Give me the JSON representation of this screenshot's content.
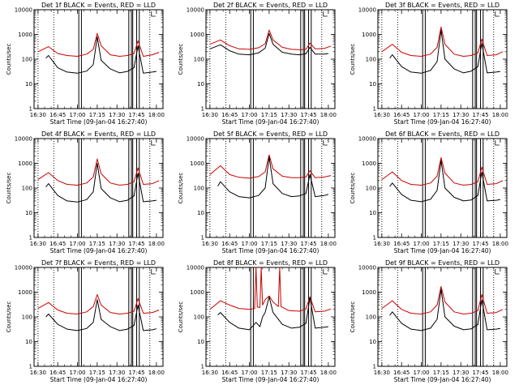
{
  "figure": {
    "x_axis_label": "Start Time (09-Jan-04 16:27:40)",
    "y_axis_label": "Counts/sec"
  },
  "chart_data": [
    {
      "type": "line",
      "title": "Det 1f BLACK = Events, RED = LLD",
      "xlabel": "Start Time (09-Jan-04 16:27:40)",
      "ylabel": "Counts/sec",
      "y_scale": "log",
      "ylim": [
        1,
        10000
      ],
      "x_ticks": [
        "16:30",
        "16:45",
        "17:00",
        "17:15",
        "17:30",
        "17:45",
        "18:00"
      ],
      "y_ticks": [
        "1",
        "10",
        "100",
        "1000",
        "10000"
      ],
      "series": [
        {
          "name": "RED",
          "color": "#cc0000",
          "x": [
            "16:30",
            "16:38",
            "16:45",
            "16:52",
            "17:00",
            "17:07",
            "17:12",
            "17:15",
            "17:18",
            "17:25",
            "17:32",
            "17:38",
            "17:43",
            "17:46",
            "17:50",
            "17:57",
            "18:02"
          ],
          "values": [
            200,
            320,
            170,
            140,
            130,
            160,
            250,
            1100,
            350,
            150,
            130,
            140,
            170,
            550,
            130,
            150,
            190
          ]
        },
        {
          "name": "BLACK",
          "color": "#000000",
          "x": [
            "16:36",
            "16:38",
            "16:45",
            "16:52",
            "17:00",
            "17:07",
            "17:12",
            "17:15",
            "17:18",
            "17:25",
            "17:32",
            "17:38",
            "17:43",
            "17:46",
            "17:50",
            "17:57",
            "18:00"
          ],
          "values": [
            110,
            140,
            45,
            30,
            27,
            33,
            60,
            800,
            90,
            40,
            28,
            32,
            45,
            350,
            27,
            30,
            32
          ]
        }
      ]
    },
    {
      "type": "line",
      "title": "Det 2f BLACK = Events, RED = LLD",
      "xlabel": "Start Time (09-Jan-04 16:27:40)",
      "ylabel": "Counts/sec",
      "y_scale": "log",
      "ylim": [
        1,
        10000
      ],
      "x_ticks": [
        "16:30",
        "16:45",
        "17:00",
        "17:15",
        "17:30",
        "17:45",
        "18:00"
      ],
      "y_ticks": [
        "1",
        "10",
        "100",
        "1000",
        "10000"
      ],
      "series": [
        {
          "name": "RED",
          "color": "#cc0000",
          "x": [
            "16:30",
            "16:38",
            "16:45",
            "16:52",
            "17:00",
            "17:07",
            "17:12",
            "17:15",
            "17:18",
            "17:25",
            "17:32",
            "17:38",
            "17:43",
            "17:46",
            "17:50",
            "17:57",
            "18:02"
          ],
          "values": [
            400,
            600,
            350,
            260,
            250,
            290,
            420,
            1500,
            600,
            300,
            250,
            240,
            250,
            450,
            260,
            270,
            340
          ]
        },
        {
          "name": "BLACK",
          "color": "#000000",
          "x": [
            "16:30",
            "16:38",
            "16:45",
            "16:52",
            "17:00",
            "17:07",
            "17:12",
            "17:15",
            "17:18",
            "17:25",
            "17:32",
            "17:38",
            "17:43",
            "17:46",
            "17:50",
            "17:57",
            "18:00"
          ],
          "values": [
            260,
            380,
            220,
            160,
            150,
            180,
            280,
            1100,
            400,
            190,
            160,
            150,
            165,
            300,
            160,
            160,
            170
          ]
        }
      ]
    },
    {
      "type": "line",
      "title": "Det 3f BLACK = Events, RED = LLD",
      "xlabel": "Start Time (09-Jan-04 16:27:40)",
      "ylabel": "Counts/sec",
      "y_scale": "log",
      "ylim": [
        1,
        10000
      ],
      "x_ticks": [
        "16:30",
        "16:45",
        "17:00",
        "17:15",
        "17:30",
        "17:45",
        "18:00"
      ],
      "y_ticks": [
        "1",
        "10",
        "100",
        "1000",
        "10000"
      ],
      "series": [
        {
          "name": "RED",
          "color": "#cc0000",
          "x": [
            "16:30",
            "16:38",
            "16:45",
            "16:52",
            "17:00",
            "17:07",
            "17:12",
            "17:15",
            "17:18",
            "17:25",
            "17:32",
            "17:38",
            "17:43",
            "17:46",
            "17:50",
            "17:57",
            "18:02"
          ],
          "values": [
            200,
            400,
            190,
            140,
            130,
            160,
            300,
            2000,
            400,
            160,
            130,
            140,
            180,
            650,
            140,
            150,
            200
          ]
        },
        {
          "name": "BLACK",
          "color": "#000000",
          "x": [
            "16:36",
            "16:38",
            "16:45",
            "16:52",
            "17:00",
            "17:07",
            "17:12",
            "17:15",
            "17:18",
            "17:25",
            "17:32",
            "17:38",
            "17:43",
            "17:46",
            "17:50",
            "17:57",
            "18:00"
          ],
          "values": [
            110,
            150,
            50,
            30,
            27,
            35,
            80,
            1500,
            100,
            40,
            28,
            33,
            50,
            450,
            28,
            30,
            32
          ]
        }
      ]
    },
    {
      "type": "line",
      "title": "Det 4f BLACK = Events, RED = LLD",
      "xlabel": "Start Time (09-Jan-04 16:27:40)",
      "ylabel": "Counts/sec",
      "y_scale": "log",
      "ylim": [
        1,
        10000
      ],
      "x_ticks": [
        "16:30",
        "16:45",
        "17:00",
        "17:15",
        "17:30",
        "17:45",
        "18:00"
      ],
      "y_ticks": [
        "1",
        "10",
        "100",
        "1000",
        "10000"
      ],
      "series": [
        {
          "name": "RED",
          "color": "#cc0000",
          "x": [
            "16:30",
            "16:38",
            "16:45",
            "16:52",
            "17:00",
            "17:07",
            "17:12",
            "17:15",
            "17:18",
            "17:25",
            "17:32",
            "17:38",
            "17:43",
            "17:46",
            "17:50",
            "17:57",
            "18:02"
          ],
          "values": [
            220,
            420,
            200,
            140,
            130,
            160,
            280,
            1500,
            380,
            160,
            130,
            140,
            180,
            650,
            140,
            150,
            200
          ]
        },
        {
          "name": "BLACK",
          "color": "#000000",
          "x": [
            "16:36",
            "16:38",
            "16:45",
            "16:52",
            "17:00",
            "17:07",
            "17:12",
            "17:15",
            "17:18",
            "17:25",
            "17:32",
            "17:38",
            "17:43",
            "17:46",
            "17:50",
            "17:57",
            "18:00"
          ],
          "values": [
            110,
            150,
            50,
            30,
            27,
            34,
            70,
            1000,
            95,
            40,
            28,
            32,
            48,
            400,
            28,
            30,
            32
          ]
        }
      ]
    },
    {
      "type": "line",
      "title": "Det 5f BLACK = Events, RED = LLD",
      "xlabel": "Start Time (09-Jan-04 16:27:40)",
      "ylabel": "Counts/sec",
      "y_scale": "log",
      "ylim": [
        1,
        10000
      ],
      "x_ticks": [
        "16:30",
        "16:45",
        "17:00",
        "17:15",
        "17:30",
        "17:45",
        "18:00"
      ],
      "y_ticks": [
        "1",
        "10",
        "100",
        "1000",
        "10000"
      ],
      "series": [
        {
          "name": "RED",
          "color": "#cc0000",
          "x": [
            "16:30",
            "16:38",
            "16:45",
            "16:52",
            "17:00",
            "17:07",
            "17:12",
            "17:15",
            "17:18",
            "17:25",
            "17:32",
            "17:38",
            "17:43",
            "17:46",
            "17:50",
            "17:57",
            "18:02"
          ],
          "values": [
            350,
            800,
            350,
            270,
            250,
            290,
            450,
            2200,
            600,
            300,
            260,
            260,
            280,
            500,
            260,
            280,
            320
          ]
        },
        {
          "name": "BLACK",
          "color": "#000000",
          "x": [
            "16:36",
            "16:38",
            "16:45",
            "16:52",
            "17:00",
            "17:07",
            "17:12",
            "17:15",
            "17:18",
            "17:25",
            "17:32",
            "17:38",
            "17:43",
            "17:46",
            "17:50",
            "17:57",
            "18:00"
          ],
          "values": [
            120,
            180,
            70,
            45,
            40,
            50,
            100,
            1800,
            150,
            60,
            45,
            48,
            60,
            350,
            45,
            50,
            55
          ]
        }
      ]
    },
    {
      "type": "line",
      "title": "Det 6f BLACK = Events, RED = LLD",
      "xlabel": "Start Time (09-Jan-04 16:27:40)",
      "ylabel": "Counts/sec",
      "y_scale": "log",
      "ylim": [
        1,
        10000
      ],
      "x_ticks": [
        "16:30",
        "16:45",
        "17:00",
        "17:15",
        "17:30",
        "17:45",
        "18:00"
      ],
      "y_ticks": [
        "1",
        "10",
        "100",
        "1000",
        "10000"
      ],
      "series": [
        {
          "name": "RED",
          "color": "#cc0000",
          "x": [
            "16:30",
            "16:38",
            "16:45",
            "16:52",
            "17:00",
            "17:07",
            "17:12",
            "17:15",
            "17:18",
            "17:25",
            "17:32",
            "17:38",
            "17:43",
            "17:46",
            "17:50",
            "17:57",
            "18:02"
          ],
          "values": [
            220,
            450,
            200,
            140,
            130,
            160,
            300,
            1700,
            400,
            160,
            130,
            140,
            180,
            700,
            140,
            150,
            200
          ]
        },
        {
          "name": "BLACK",
          "color": "#000000",
          "x": [
            "16:36",
            "16:38",
            "16:45",
            "16:52",
            "17:00",
            "17:07",
            "17:12",
            "17:15",
            "17:18",
            "17:25",
            "17:32",
            "17:38",
            "17:43",
            "17:46",
            "17:50",
            "17:57",
            "18:00"
          ],
          "values": [
            115,
            160,
            55,
            32,
            28,
            35,
            80,
            1300,
            100,
            42,
            30,
            33,
            50,
            450,
            30,
            32,
            34
          ]
        }
      ]
    },
    {
      "type": "line",
      "title": "Det 7f BLACK = Events, RED = LLD",
      "xlabel": "Start Time (09-Jan-04 16:27:40)",
      "ylabel": "Counts/sec",
      "y_scale": "log",
      "ylim": [
        1,
        10000
      ],
      "x_ticks": [
        "16:30",
        "16:45",
        "17:00",
        "17:15",
        "17:30",
        "17:45",
        "18:00"
      ],
      "y_ticks": [
        "1",
        "10",
        "100",
        "1000",
        "10000"
      ],
      "series": [
        {
          "name": "RED",
          "color": "#cc0000",
          "x": [
            "16:30",
            "16:38",
            "16:45",
            "16:52",
            "17:00",
            "17:07",
            "17:12",
            "17:15",
            "17:18",
            "17:25",
            "17:32",
            "17:38",
            "17:43",
            "17:46",
            "17:50",
            "17:57",
            "18:02"
          ],
          "values": [
            220,
            380,
            190,
            140,
            130,
            160,
            260,
            800,
            300,
            150,
            130,
            140,
            170,
            550,
            140,
            150,
            190
          ]
        },
        {
          "name": "BLACK",
          "color": "#000000",
          "x": [
            "16:36",
            "16:38",
            "16:45",
            "16:52",
            "17:00",
            "17:07",
            "17:12",
            "17:15",
            "17:18",
            "17:25",
            "17:32",
            "17:38",
            "17:43",
            "17:46",
            "17:50",
            "17:57",
            "18:00"
          ],
          "values": [
            100,
            130,
            50,
            32,
            28,
            34,
            60,
            500,
            80,
            40,
            28,
            32,
            45,
            300,
            28,
            30,
            33
          ]
        }
      ]
    },
    {
      "type": "line",
      "title": "Det 8f BLACK = Events, RED = LLD",
      "xlabel": "Start Time (09-Jan-04 16:27:40)",
      "ylabel": "Counts/sec",
      "y_scale": "log",
      "ylim": [
        1,
        10000
      ],
      "x_ticks": [
        "16:30",
        "16:45",
        "17:00",
        "17:15",
        "17:30",
        "17:45",
        "18:00"
      ],
      "y_ticks": [
        "1",
        "10",
        "100",
        "1000",
        "10000"
      ],
      "series": [
        {
          "name": "RED",
          "color": "#cc0000",
          "x": [
            "16:30",
            "16:38",
            "16:45",
            "16:52",
            "17:00",
            "17:04",
            "17:05",
            "17:06",
            "17:08",
            "17:09",
            "17:10",
            "17:12",
            "17:15",
            "17:18",
            "17:22",
            "17:23",
            "17:24",
            "17:30",
            "17:38",
            "17:43",
            "17:46",
            "17:50",
            "17:57",
            "18:02"
          ],
          "values": [
            200,
            450,
            300,
            220,
            200,
            220,
            10000,
            250,
            240,
            10000,
            300,
            500,
            700,
            400,
            260,
            10000,
            260,
            180,
            170,
            210,
            650,
            160,
            170,
            210
          ]
        },
        {
          "name": "BLACK",
          "color": "#000000",
          "x": [
            "16:36",
            "16:38",
            "16:45",
            "16:52",
            "17:00",
            "17:05",
            "17:08",
            "17:10",
            "17:12",
            "17:15",
            "17:18",
            "17:25",
            "17:32",
            "17:38",
            "17:43",
            "17:46",
            "17:50",
            "17:57",
            "18:00"
          ],
          "values": [
            120,
            150,
            60,
            35,
            30,
            60,
            40,
            100,
            150,
            650,
            150,
            50,
            35,
            38,
            55,
            600,
            35,
            38,
            40
          ]
        }
      ]
    },
    {
      "type": "line",
      "title": "Det 9f BLACK = Events, RED = LLD",
      "xlabel": "Start Time (09-Jan-04 16:27:40)",
      "ylabel": "Counts/sec",
      "y_scale": "log",
      "ylim": [
        1,
        10000
      ],
      "x_ticks": [
        "16:30",
        "16:45",
        "17:00",
        "17:15",
        "17:30",
        "17:45",
        "18:00"
      ],
      "y_ticks": [
        "1",
        "10",
        "100",
        "1000",
        "10000"
      ],
      "series": [
        {
          "name": "RED",
          "color": "#cc0000",
          "x": [
            "16:30",
            "16:38",
            "16:45",
            "16:52",
            "17:00",
            "17:07",
            "17:12",
            "17:15",
            "17:18",
            "17:25",
            "17:32",
            "17:38",
            "17:43",
            "17:46",
            "17:50",
            "17:57",
            "18:02"
          ],
          "values": [
            220,
            450,
            200,
            140,
            130,
            160,
            300,
            1700,
            400,
            160,
            130,
            140,
            180,
            800,
            140,
            150,
            200
          ]
        },
        {
          "name": "BLACK",
          "color": "#000000",
          "x": [
            "16:36",
            "16:38",
            "16:45",
            "16:52",
            "17:00",
            "17:07",
            "17:12",
            "17:15",
            "17:18",
            "17:25",
            "17:32",
            "17:38",
            "17:43",
            "17:46",
            "17:50",
            "17:57",
            "18:00"
          ],
          "values": [
            115,
            160,
            55,
            32,
            28,
            35,
            80,
            1300,
            100,
            42,
            30,
            33,
            50,
            500,
            30,
            32,
            34
          ]
        }
      ]
    }
  ]
}
